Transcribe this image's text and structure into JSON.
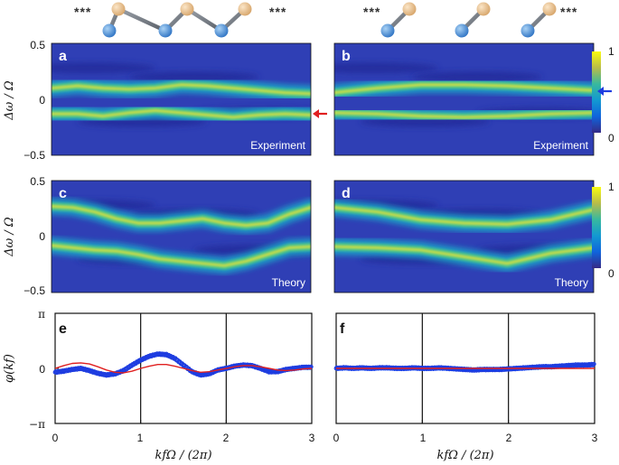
{
  "colors": {
    "bg": "#1a2a9a",
    "series_data": "#1e3de0",
    "series_theory": "#e02020",
    "arrow_left_panel": "#e02020",
    "arrow_right_panel": "#1e3de0",
    "atom_blue": "#4a90d9",
    "atom_tan": "#e8c38e"
  },
  "schematics": {
    "left": {
      "ellipsis_left": "***",
      "ellipsis_right": "***",
      "geometry": "zigzag"
    },
    "right": {
      "ellipsis_left": "***",
      "ellipsis_right": "***",
      "geometry": "dimers"
    }
  },
  "colorbar": {
    "max_label": "1",
    "min_label": "0",
    "colormap": "parula"
  },
  "panels": [
    {
      "id": "a",
      "label": "a",
      "caption": "Experiment",
      "arrow": "left-panel-red"
    },
    {
      "id": "b",
      "label": "b",
      "caption": "Experiment",
      "arrow": "right-panel-blue"
    },
    {
      "id": "c",
      "label": "c",
      "caption": "Theory"
    },
    {
      "id": "d",
      "label": "d",
      "caption": "Theory"
    },
    {
      "id": "e",
      "label": "e"
    },
    {
      "id": "f",
      "label": "f"
    }
  ],
  "axes": {
    "heatmap_ylabel": "Δω / Ω",
    "heatmap_yticks": [
      "0.5",
      "0",
      "−0.5"
    ],
    "phase_ylabel": "φ(kf)",
    "phase_yticks": [
      "π",
      "0",
      "−π"
    ],
    "xlabel": "kfΩ / (2π)",
    "xticks": [
      "0",
      "1",
      "2",
      "3"
    ]
  },
  "chart_data": [
    {
      "type": "heatmap",
      "panel": "a",
      "x_range": [
        0,
        3
      ],
      "ylim": [
        -0.5,
        0.5
      ],
      "bands": [
        {
          "x": [
            0,
            0.3,
            0.6,
            0.9,
            1.2,
            1.5,
            1.8,
            2.1,
            2.4,
            2.7,
            3.0
          ],
          "y": [
            0.1,
            0.12,
            0.1,
            0.09,
            0.1,
            0.13,
            0.12,
            0.1,
            0.08,
            0.06,
            0.05
          ]
        },
        {
          "x": [
            0,
            0.3,
            0.6,
            0.9,
            1.2,
            1.5,
            1.8,
            2.1,
            2.4,
            2.7,
            3.0
          ],
          "y": [
            -0.13,
            -0.13,
            -0.15,
            -0.12,
            -0.1,
            -0.12,
            -0.14,
            -0.16,
            -0.14,
            -0.13,
            -0.14
          ]
        }
      ]
    },
    {
      "type": "heatmap",
      "panel": "b",
      "x_range": [
        0,
        3
      ],
      "ylim": [
        -0.5,
        0.5
      ],
      "bands": [
        {
          "x": [
            0,
            0.5,
            1.0,
            1.5,
            2.0,
            2.5,
            3.0
          ],
          "y": [
            0.06,
            0.1,
            0.13,
            0.13,
            0.12,
            0.1,
            0.08
          ]
        },
        {
          "x": [
            0,
            0.5,
            1.0,
            1.5,
            2.0,
            2.5,
            3.0
          ],
          "y": [
            -0.12,
            -0.13,
            -0.15,
            -0.16,
            -0.15,
            -0.13,
            -0.12
          ]
        }
      ]
    },
    {
      "type": "heatmap",
      "panel": "c",
      "x_range": [
        0,
        3
      ],
      "ylim": [
        -0.5,
        0.5
      ],
      "bands": [
        {
          "x": [
            0,
            0.25,
            0.5,
            0.75,
            1.0,
            1.25,
            1.5,
            1.75,
            2.0,
            2.25,
            2.5,
            2.75,
            3.0
          ],
          "y": [
            0.27,
            0.26,
            0.22,
            0.16,
            0.12,
            0.12,
            0.14,
            0.16,
            0.12,
            0.1,
            0.12,
            0.2,
            0.26
          ]
        },
        {
          "x": [
            0,
            0.25,
            0.5,
            0.75,
            1.0,
            1.25,
            1.5,
            1.75,
            2.0,
            2.25,
            2.5,
            2.75,
            3.0
          ],
          "y": [
            -0.08,
            -0.1,
            -0.12,
            -0.13,
            -0.16,
            -0.2,
            -0.22,
            -0.24,
            -0.26,
            -0.22,
            -0.16,
            -0.1,
            -0.09
          ]
        }
      ]
    },
    {
      "type": "heatmap",
      "panel": "d",
      "x_range": [
        0,
        3
      ],
      "ylim": [
        -0.5,
        0.5
      ],
      "bands": [
        {
          "x": [
            0,
            0.5,
            1.0,
            1.5,
            2.0,
            2.5,
            3.0
          ],
          "y": [
            0.26,
            0.22,
            0.15,
            0.12,
            0.11,
            0.15,
            0.24
          ]
        },
        {
          "x": [
            0,
            0.5,
            1.0,
            1.5,
            2.0,
            2.5,
            3.0
          ],
          "y": [
            -0.09,
            -0.1,
            -0.12,
            -0.18,
            -0.24,
            -0.15,
            -0.1
          ]
        }
      ]
    },
    {
      "type": "scatter",
      "panel": "e",
      "xlim": [
        0,
        3
      ],
      "ylim_units_of_pi": [
        -1,
        1
      ],
      "vlines": [
        1,
        2
      ],
      "series": [
        {
          "style": "markers",
          "x": [
            0,
            0.1,
            0.2,
            0.3,
            0.4,
            0.5,
            0.6,
            0.7,
            0.8,
            0.9,
            1.0,
            1.1,
            1.2,
            1.3,
            1.4,
            1.5,
            1.6,
            1.7,
            1.8,
            1.9,
            2.0,
            2.1,
            2.2,
            2.3,
            2.4,
            2.5,
            2.6,
            2.7,
            2.8,
            2.9,
            3.0
          ],
          "y": [
            -0.07,
            -0.05,
            -0.02,
            0.0,
            -0.04,
            -0.09,
            -0.12,
            -0.1,
            -0.04,
            0.06,
            0.15,
            0.22,
            0.26,
            0.25,
            0.18,
            0.06,
            -0.06,
            -0.12,
            -0.1,
            -0.03,
            0.0,
            0.04,
            0.06,
            0.05,
            0.0,
            -0.06,
            -0.06,
            -0.02,
            0.0,
            0.02,
            0.02
          ]
        },
        {
          "style": "line",
          "x": [
            0,
            0.1,
            0.2,
            0.3,
            0.4,
            0.5,
            0.6,
            0.7,
            0.8,
            0.9,
            1.0,
            1.1,
            1.2,
            1.3,
            1.4,
            1.5,
            1.6,
            1.7,
            1.8,
            1.9,
            2.0,
            2.1,
            2.2,
            2.3,
            2.4,
            2.5,
            2.6,
            2.7,
            2.8,
            2.9,
            3.0
          ],
          "y": [
            0.0,
            0.05,
            0.09,
            0.1,
            0.08,
            0.03,
            -0.03,
            -0.07,
            -0.08,
            -0.05,
            0.0,
            0.04,
            0.07,
            0.07,
            0.04,
            0.0,
            -0.04,
            -0.07,
            -0.06,
            -0.03,
            0.0,
            0.03,
            0.05,
            0.05,
            0.03,
            0.0,
            -0.03,
            -0.04,
            -0.03,
            -0.01,
            0.0
          ]
        }
      ]
    },
    {
      "type": "scatter",
      "panel": "f",
      "xlim": [
        0,
        3
      ],
      "ylim_units_of_pi": [
        -1,
        1
      ],
      "vlines": [
        1,
        2
      ],
      "series": [
        {
          "style": "markers",
          "x": [
            0,
            0.1,
            0.2,
            0.3,
            0.4,
            0.5,
            0.6,
            0.7,
            0.8,
            0.9,
            1.0,
            1.1,
            1.2,
            1.3,
            1.4,
            1.5,
            1.6,
            1.7,
            1.8,
            1.9,
            2.0,
            2.1,
            2.2,
            2.3,
            2.4,
            2.5,
            2.6,
            2.7,
            2.8,
            2.9,
            3.0
          ],
          "y": [
            0.0,
            0.01,
            0.0,
            0.01,
            0.0,
            0.01,
            0.01,
            0.0,
            0.0,
            0.01,
            0.0,
            0.0,
            0.01,
            0.0,
            -0.01,
            -0.02,
            -0.03,
            -0.02,
            -0.02,
            -0.02,
            -0.01,
            0.0,
            0.01,
            0.02,
            0.03,
            0.03,
            0.04,
            0.05,
            0.06,
            0.06,
            0.07
          ]
        },
        {
          "style": "line",
          "x": [
            0,
            0.5,
            1.0,
            1.5,
            2.0,
            2.5,
            3.0
          ],
          "y": [
            0,
            0,
            0,
            0,
            0,
            0,
            0
          ]
        }
      ]
    }
  ]
}
